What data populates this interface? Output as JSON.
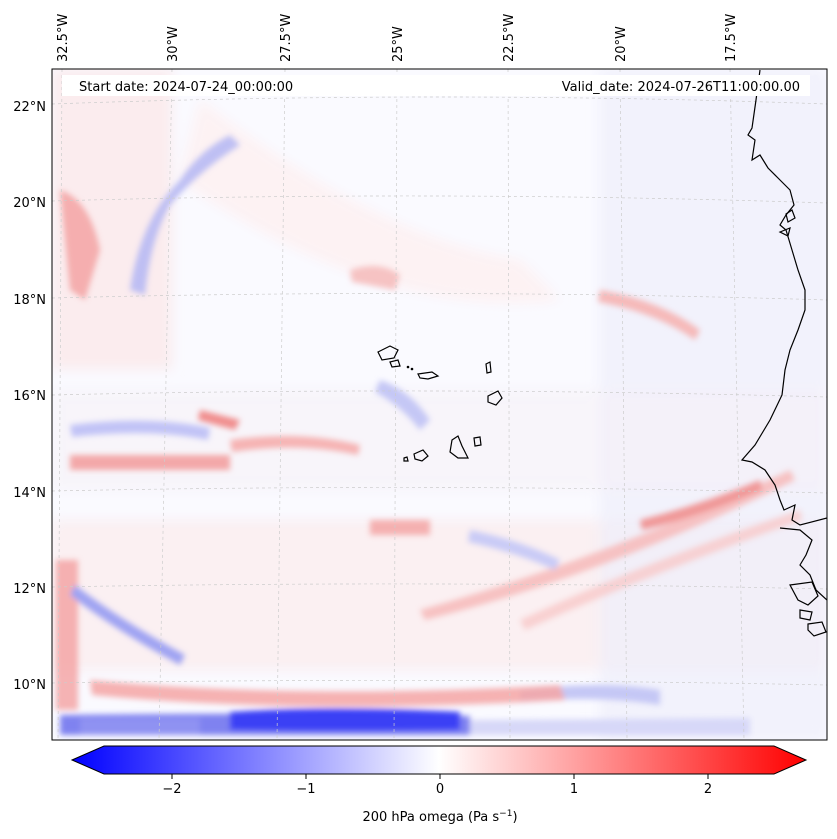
{
  "annotations": {
    "start_date": "Start date: 2024-07-24_00:00:00",
    "valid_date": "Valid_date: 2024-07-26T11:00:00.00"
  },
  "axes": {
    "lon_labels": [
      "32.5°W",
      "30°W",
      "27.5°W",
      "25°W",
      "22.5°W",
      "20°W",
      "17.5°W"
    ],
    "lat_labels": [
      "22°N",
      "20°N",
      "18°N",
      "16°N",
      "14°N",
      "12°N",
      "10°N"
    ]
  },
  "colorbar": {
    "ticks": [
      "−2",
      "−1",
      "0",
      "1",
      "2"
    ],
    "label": "200 hPa omega (Pa s",
    "label_sup": "−1",
    "label_end": ")",
    "min": -2.5,
    "max": 2.5,
    "negative_color": "#0000ff",
    "positive_color": "#ff0000"
  },
  "field": {
    "variable": "200 hPa omega",
    "units": "Pa s-1"
  },
  "colors": {
    "coastline": "#000000",
    "grid": "#cccccc",
    "background": "#ffffff"
  }
}
